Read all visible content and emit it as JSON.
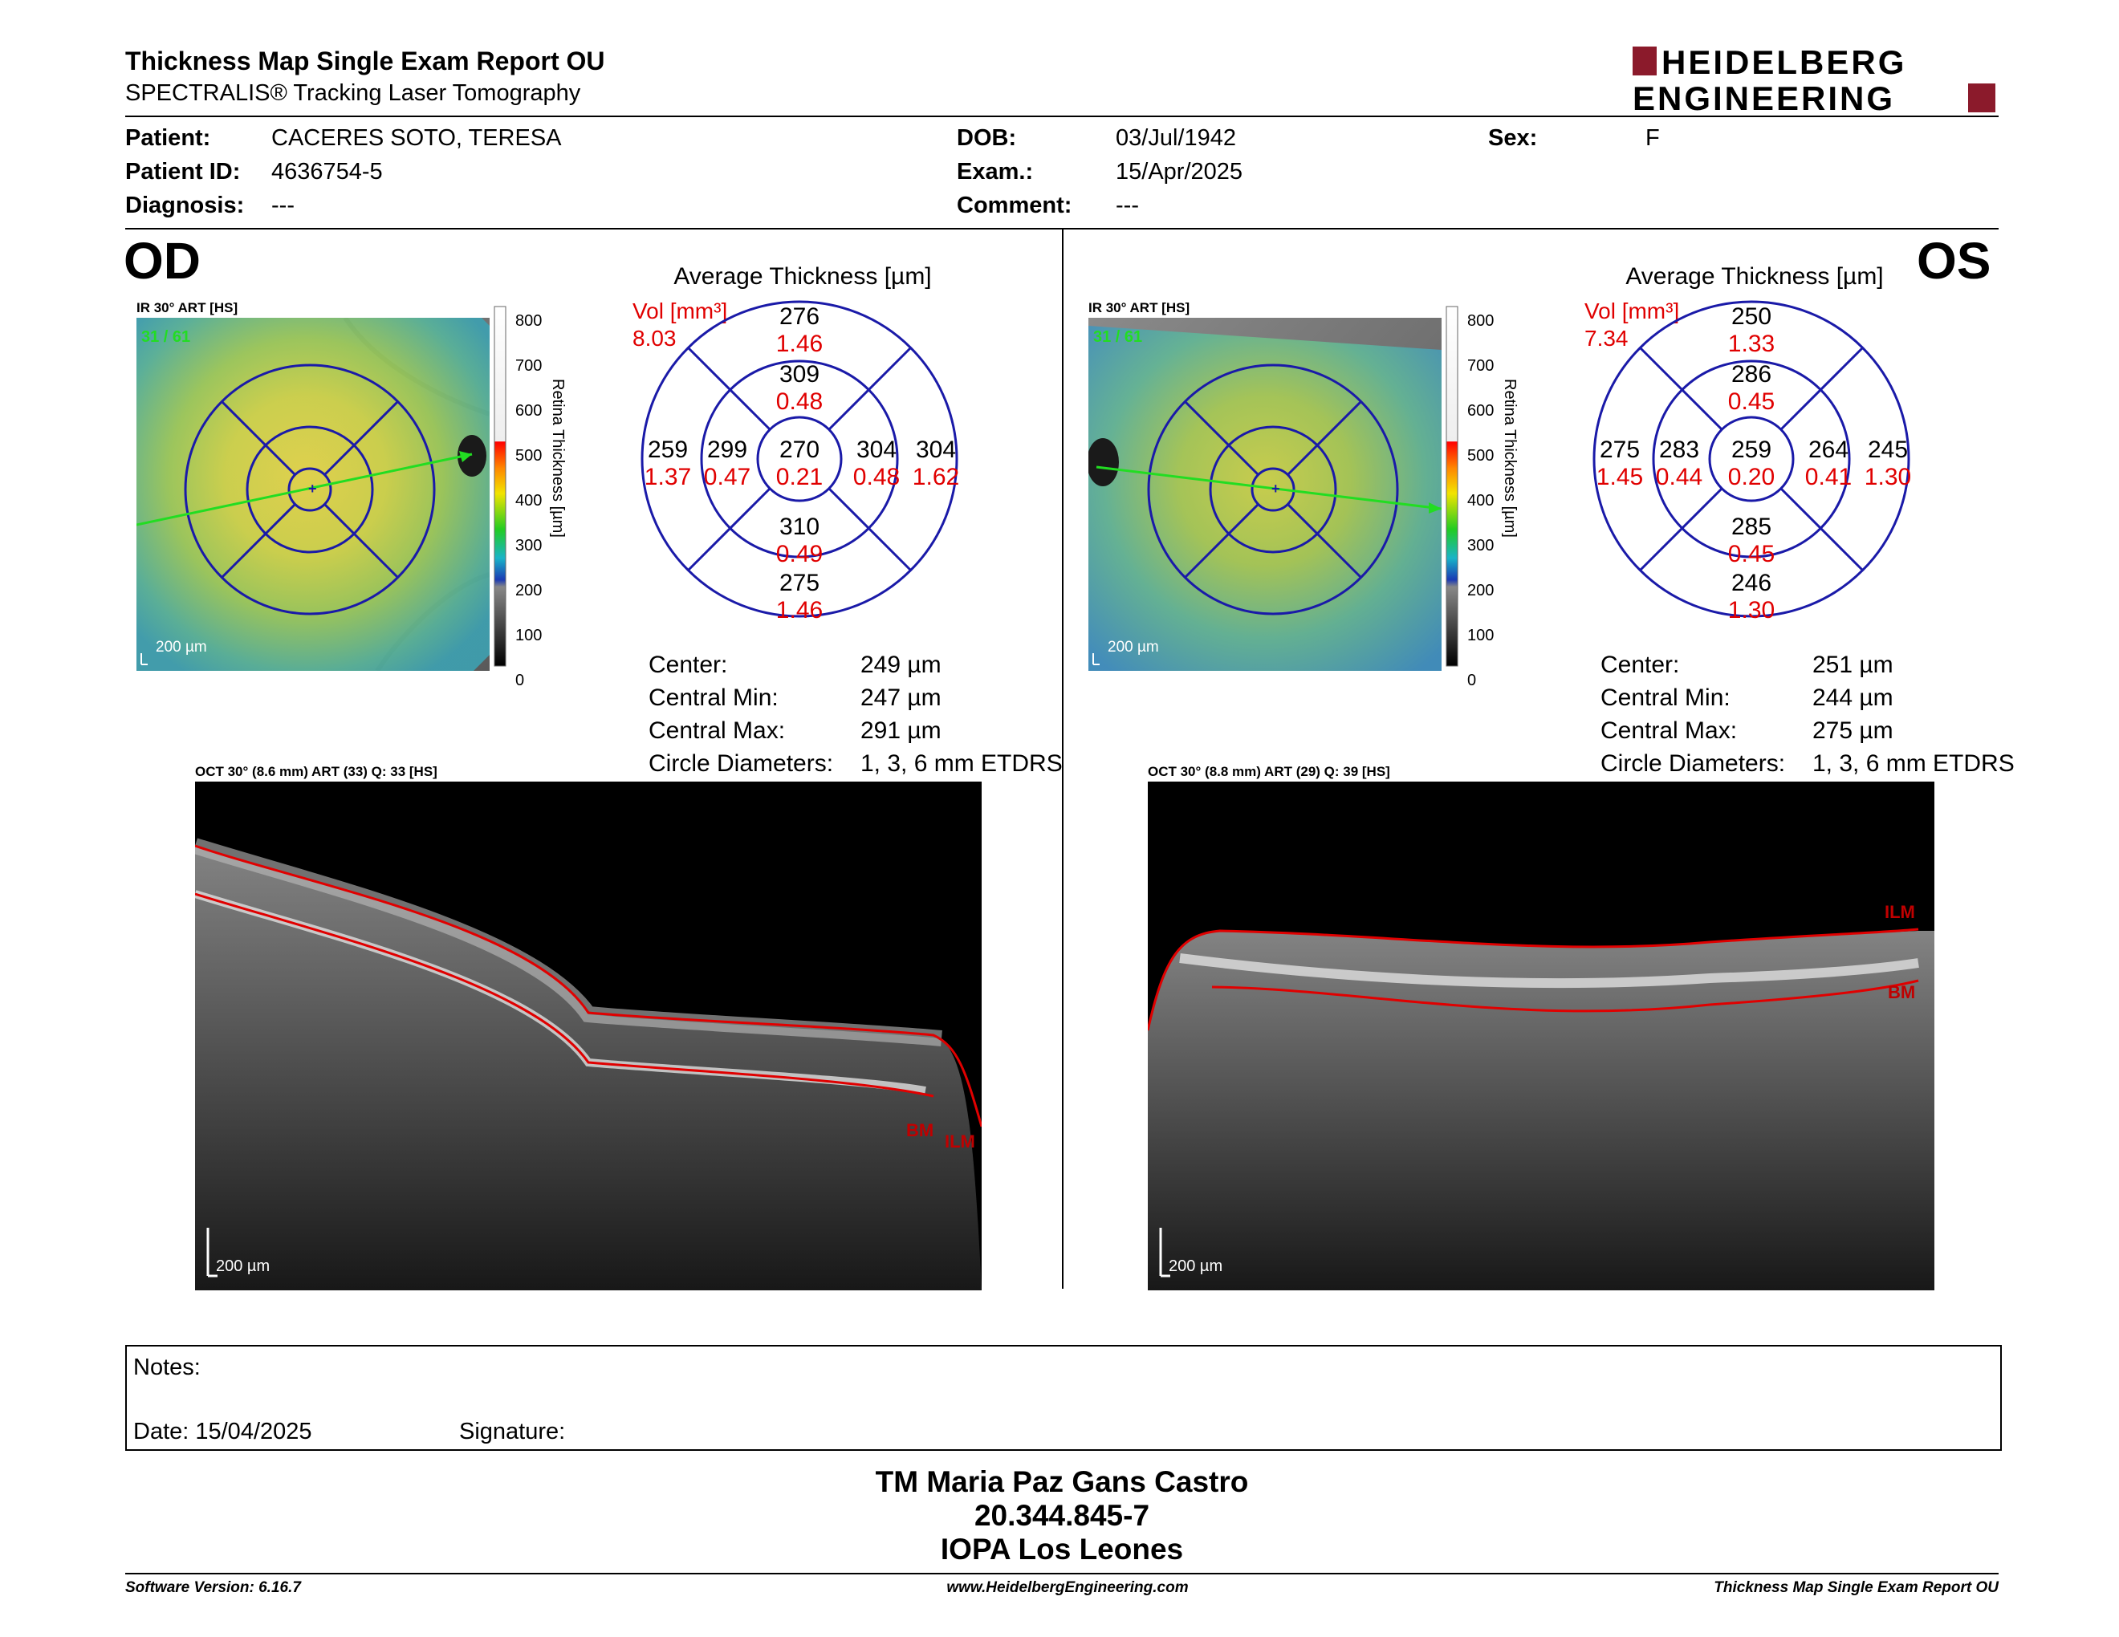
{
  "header": {
    "title": "Thickness Map Single Exam Report OU",
    "subtitle": "SPECTRALIS® Tracking Laser Tomography",
    "logo_line1": "HEIDELBERG",
    "logo_line2": "ENGINEERING",
    "brand_color": "#8b1a2b"
  },
  "patient": {
    "patient_label": "Patient:",
    "patient_value": "CACERES SOTO, TERESA",
    "id_label": "Patient ID:",
    "id_value": "4636754-5",
    "diagnosis_label": "Diagnosis:",
    "diagnosis_value": "---",
    "dob_label": "DOB:",
    "dob_value": "03/Jul/1942",
    "exam_label": "Exam.:",
    "exam_value": "15/Apr/2025",
    "comment_label": "Comment:",
    "comment_value": "---",
    "sex_label": "Sex:",
    "sex_value": "F"
  },
  "od": {
    "eye": "OD",
    "ir_label": "IR 30° ART [HS]",
    "ir_counter": "31 / 61",
    "scale_bar": "200 µm",
    "colorbar_ticks": [
      "800",
      "700",
      "600",
      "500",
      "400",
      "300",
      "200",
      "100",
      "0"
    ],
    "colorbar_label": "Retina Thickness [µm]",
    "avg_title": "Average Thickness [µm]",
    "vol_label": "Vol [mm³]",
    "vol_value": "8.03",
    "sectors": {
      "outer_top": {
        "t": "276",
        "v": "1.46"
      },
      "inner_top": {
        "t": "309",
        "v": "0.48"
      },
      "outer_left": {
        "t": "259",
        "v": "1.37"
      },
      "inner_left": {
        "t": "299",
        "v": "0.47"
      },
      "center": {
        "t": "270",
        "v": "0.21"
      },
      "inner_right": {
        "t": "304",
        "v": "0.48"
      },
      "outer_right": {
        "t": "304",
        "v": "1.62"
      },
      "inner_bottom": {
        "t": "310",
        "v": "0.49"
      },
      "outer_bottom": {
        "t": "275",
        "v": "1.46"
      }
    },
    "stats": [
      {
        "label": "Center:",
        "value": "249 µm"
      },
      {
        "label": "Central Min:",
        "value": "247 µm"
      },
      {
        "label": "Central Max:",
        "value": "291 µm"
      },
      {
        "label": "Circle Diameters:",
        "value": "1, 3, 6 mm ETDRS"
      }
    ],
    "oct_label": "OCT 30° (8.6 mm) ART (33) Q: 33 [HS]",
    "oct_scale": "200 µm",
    "ilm": "ILM",
    "bm": "BM"
  },
  "os": {
    "eye": "OS",
    "ir_label": "IR 30° ART [HS]",
    "ir_counter": "31 / 61",
    "scale_bar": "200 µm",
    "colorbar_ticks": [
      "800",
      "700",
      "600",
      "500",
      "400",
      "300",
      "200",
      "100",
      "0"
    ],
    "colorbar_label": "Retina Thickness [µm]",
    "avg_title": "Average Thickness [µm]",
    "vol_label": "Vol [mm³]",
    "vol_value": "7.34",
    "sectors": {
      "outer_top": {
        "t": "250",
        "v": "1.33"
      },
      "inner_top": {
        "t": "286",
        "v": "0.45"
      },
      "outer_left": {
        "t": "275",
        "v": "1.45"
      },
      "inner_left": {
        "t": "283",
        "v": "0.44"
      },
      "center": {
        "t": "259",
        "v": "0.20"
      },
      "inner_right": {
        "t": "264",
        "v": "0.41"
      },
      "outer_right": {
        "t": "245",
        "v": "1.30"
      },
      "inner_bottom": {
        "t": "285",
        "v": "0.45"
      },
      "outer_bottom": {
        "t": "246",
        "v": "1.30"
      }
    },
    "stats": [
      {
        "label": "Center:",
        "value": "251 µm"
      },
      {
        "label": "Central Min:",
        "value": "244 µm"
      },
      {
        "label": "Central Max:",
        "value": "275 µm"
      },
      {
        "label": "Circle Diameters:",
        "value": "1, 3, 6 mm ETDRS"
      }
    ],
    "oct_label": "OCT 30° (8.8 mm) ART (29) Q: 39 [HS]",
    "oct_scale": "200 µm",
    "ilm": "ILM",
    "bm": "BM"
  },
  "notes": {
    "notes_label": "Notes:",
    "date_label": "Date: 15/04/2025",
    "signature_label": "Signature:"
  },
  "signer": {
    "name": "TM Maria Paz Gans Castro",
    "id": "20.344.845-7",
    "org": "IOPA Los Leones"
  },
  "footer": {
    "software": "Software Version: 6.16.7",
    "url": "www.HeidelbergEngineering.com",
    "report": "Thickness Map Single Exam Report OU"
  },
  "colors": {
    "value_red": "#e00000",
    "grid_blue": "#1a1aa8",
    "scan_green": "#22dd22"
  }
}
